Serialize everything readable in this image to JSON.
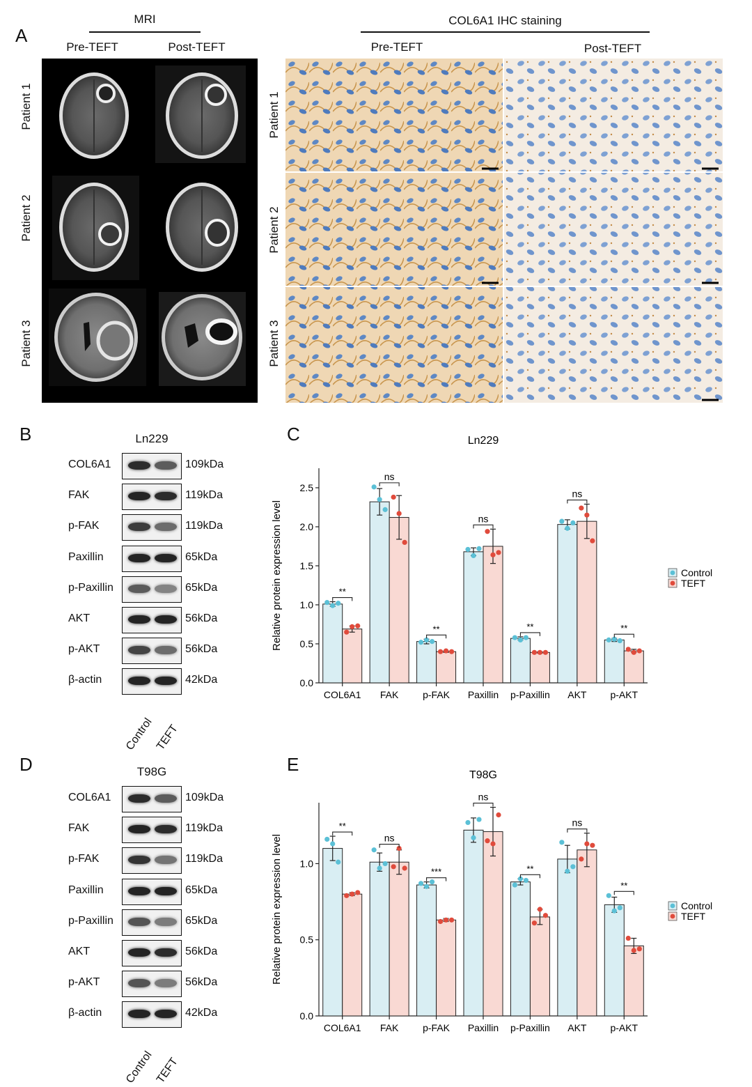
{
  "panels": {
    "a": "A",
    "b": "B",
    "c": "C",
    "d": "D",
    "e": "E"
  },
  "mri": {
    "title": "MRI",
    "pre": "Pre-TEFT",
    "post": "Post-TEFT",
    "patients": [
      "Patient 1",
      "Patient 2",
      "Patient 3"
    ]
  },
  "ihc": {
    "title": "COL6A1 IHC staining",
    "pre": "Pre-TEFT",
    "post": "Post-TEFT",
    "patients": [
      "Patient 1",
      "Patient 2",
      "Patient 3"
    ]
  },
  "blots": [
    {
      "cell_line": "Ln229",
      "rows": [
        {
          "name": "COL6A1",
          "kda": "109kDa",
          "control": 0.85,
          "teft": 0.55
        },
        {
          "name": "FAK",
          "kda": "119kDa",
          "control": 0.9,
          "teft": 0.85
        },
        {
          "name": "p-FAK",
          "kda": "119kDa",
          "control": 0.75,
          "teft": 0.45
        },
        {
          "name": "Paxillin",
          "kda": "65kDa",
          "control": 0.9,
          "teft": 0.9
        },
        {
          "name": "p-Paxillin",
          "kda": "65kDa",
          "control": 0.55,
          "teft": 0.3
        },
        {
          "name": "AKT",
          "kda": "56kDa",
          "control": 0.9,
          "teft": 0.9
        },
        {
          "name": "p-AKT",
          "kda": "56kDa",
          "control": 0.7,
          "teft": 0.45
        },
        {
          "name": "β-actin",
          "kda": "42kDa",
          "control": 0.9,
          "teft": 0.9
        }
      ],
      "lanes": [
        "Control",
        "TEFT"
      ]
    },
    {
      "cell_line": "T98G",
      "rows": [
        {
          "name": "COL6A1",
          "kda": "109kDa",
          "control": 0.85,
          "teft": 0.55
        },
        {
          "name": "FAK",
          "kda": "119kDa",
          "control": 0.9,
          "teft": 0.85
        },
        {
          "name": "p-FAK",
          "kda": "119kDa",
          "control": 0.8,
          "teft": 0.4
        },
        {
          "name": "Paxillin",
          "kda": "65kDa",
          "control": 0.9,
          "teft": 0.9
        },
        {
          "name": "p-Paxillin",
          "kda": "65kDa",
          "control": 0.6,
          "teft": 0.35
        },
        {
          "name": "AKT",
          "kda": "56kDa",
          "control": 0.9,
          "teft": 0.85
        },
        {
          "name": "p-AKT",
          "kda": "56kDa",
          "control": 0.6,
          "teft": 0.35
        },
        {
          "name": "β-actin",
          "kda": "42kDa",
          "control": 0.9,
          "teft": 0.9
        }
      ],
      "lanes": [
        "Control",
        "TEFT"
      ]
    }
  ],
  "colors": {
    "control": "#5bc0d6",
    "control_fill": "#d9eef3",
    "teft": "#e04b3c",
    "teft_fill": "#f9d9d3"
  },
  "chart_data": [
    {
      "type": "bar",
      "title": "Ln229",
      "ylabel": "Relative protein expression level",
      "ylim": [
        0,
        2.75
      ],
      "yticks": [
        0.0,
        0.5,
        1.0,
        1.5,
        2.0,
        2.5
      ],
      "categories": [
        "COL6A1",
        "FAK",
        "p-FAK",
        "Paxillin",
        "p-Paxillin",
        "AKT",
        "p-AKT"
      ],
      "legend": [
        "Control",
        "TEFT"
      ],
      "legend_position": "right",
      "series": [
        {
          "name": "Control",
          "values": [
            1.01,
            2.32,
            0.53,
            1.68,
            0.57,
            2.03,
            0.55
          ],
          "errors": [
            0.03,
            0.17,
            0.03,
            0.05,
            0.02,
            0.06,
            0.02
          ],
          "points": [
            [
              1.03,
              0.99,
              1.02
            ],
            [
              2.51,
              2.35,
              2.22
            ],
            [
              0.52,
              0.55,
              0.53
            ],
            [
              1.71,
              1.63,
              1.72
            ],
            [
              0.58,
              0.55,
              0.58
            ],
            [
              2.07,
              1.98,
              2.05
            ],
            [
              0.55,
              0.56,
              0.54
            ]
          ]
        },
        {
          "name": "TEFT",
          "values": [
            0.69,
            2.12,
            0.4,
            1.75,
            0.39,
            2.07,
            0.41
          ],
          "errors": [
            0.04,
            0.28,
            0.01,
            0.22,
            0.01,
            0.22,
            0.02
          ],
          "points": [
            [
              0.65,
              0.72,
              0.73
            ],
            [
              2.38,
              2.17,
              1.8
            ],
            [
              0.4,
              0.41,
              0.4
            ],
            [
              1.94,
              1.64,
              1.67
            ],
            [
              0.39,
              0.39,
              0.39
            ],
            [
              2.24,
              2.15,
              1.82
            ],
            [
              0.43,
              0.39,
              0.41
            ]
          ]
        }
      ],
      "significance": [
        "**",
        "ns",
        "**",
        "ns",
        "**",
        "ns",
        "**"
      ]
    },
    {
      "type": "bar",
      "title": "T98G",
      "ylabel": "Relative protein expression level",
      "ylim": [
        0,
        1.4
      ],
      "yticks": [
        0.0,
        0.5,
        1.0
      ],
      "categories": [
        "COL6A1",
        "FAK",
        "p-FAK",
        "Paxillin",
        "p-Paxillin",
        "AKT",
        "p-AKT"
      ],
      "legend": [
        "Control",
        "TEFT"
      ],
      "legend_position": "right",
      "series": [
        {
          "name": "Control",
          "values": [
            1.1,
            1.01,
            0.86,
            1.22,
            0.88,
            1.03,
            0.73
          ],
          "errors": [
            0.08,
            0.06,
            0.02,
            0.08,
            0.02,
            0.09,
            0.05
          ],
          "points": [
            [
              1.16,
              1.13,
              1.01
            ],
            [
              1.09,
              0.97,
              1.0
            ],
            [
              0.87,
              0.85,
              0.88
            ],
            [
              1.27,
              1.17,
              1.29
            ],
            [
              0.86,
              0.9,
              0.89
            ],
            [
              1.14,
              0.95,
              0.98
            ],
            [
              0.79,
              0.69,
              0.71
            ]
          ]
        },
        {
          "name": "TEFT",
          "values": [
            0.8,
            1.01,
            0.63,
            1.21,
            0.65,
            1.09,
            0.46
          ],
          "errors": [
            0.01,
            0.08,
            0.01,
            0.16,
            0.05,
            0.11,
            0.05
          ],
          "points": [
            [
              0.79,
              0.8,
              0.81
            ],
            [
              0.98,
              1.1,
              0.97
            ],
            [
              0.62,
              0.63,
              0.63
            ],
            [
              1.15,
              1.13,
              1.32
            ],
            [
              0.61,
              0.7,
              0.66
            ],
            [
              1.03,
              1.13,
              1.12
            ],
            [
              0.51,
              0.43,
              0.44
            ]
          ]
        }
      ],
      "significance": [
        "**",
        "ns",
        "***",
        "ns",
        "**",
        "ns",
        "**"
      ]
    }
  ]
}
